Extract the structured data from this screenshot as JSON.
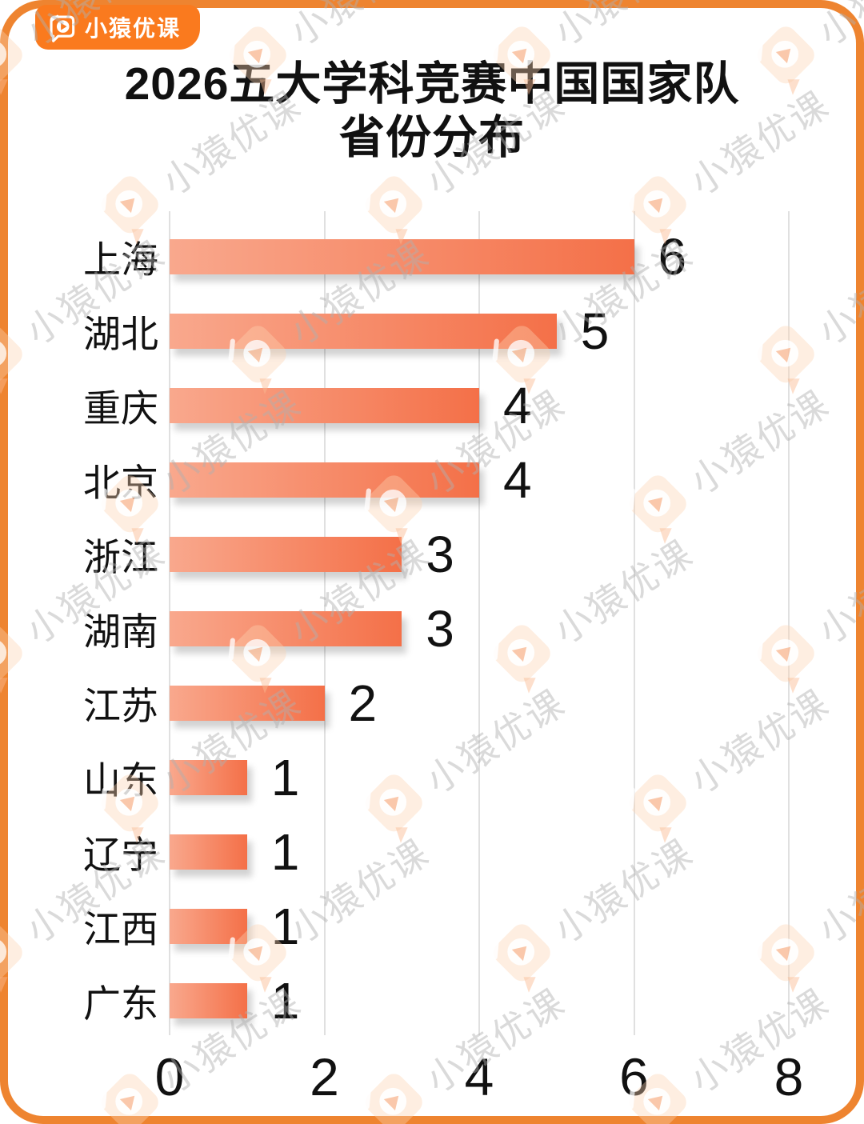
{
  "page": {
    "brand_badge": {
      "label": "小猿优课",
      "icon": "book-play-icon"
    },
    "watermark": {
      "text": "小猿优课",
      "icon": "book-play-icon"
    }
  },
  "title": {
    "line1": "2026五大学科竞赛中国国家队",
    "line2": "省份分布"
  },
  "chart_data": {
    "type": "bar",
    "orientation": "horizontal",
    "title": "2026五大学科竞赛中国国家队省份分布",
    "categories": [
      "上海",
      "湖北",
      "重庆",
      "北京",
      "浙江",
      "湖南",
      "江苏",
      "山东",
      "辽宁",
      "江西",
      "广东"
    ],
    "values": [
      6,
      5,
      4,
      4,
      3,
      3,
      2,
      1,
      1,
      1,
      1
    ],
    "xlabel": "",
    "ylabel": "",
    "xlim": [
      0,
      8
    ],
    "xticks": [
      0,
      2,
      4,
      6,
      8
    ],
    "grid": "vertical",
    "legend": "none",
    "value_labels": "shown right of each bar"
  },
  "colors": {
    "frame_border": "#EE8430",
    "badge_bg": "#FA7A1E",
    "badge_text": "#FFFFFF",
    "bar_gradient_start": "#F9A88D",
    "bar_gradient_end": "#F47048",
    "gridline": "#E0E0E0",
    "text": "#111111",
    "watermark_text": "rgba(175,175,175,0.55)"
  }
}
